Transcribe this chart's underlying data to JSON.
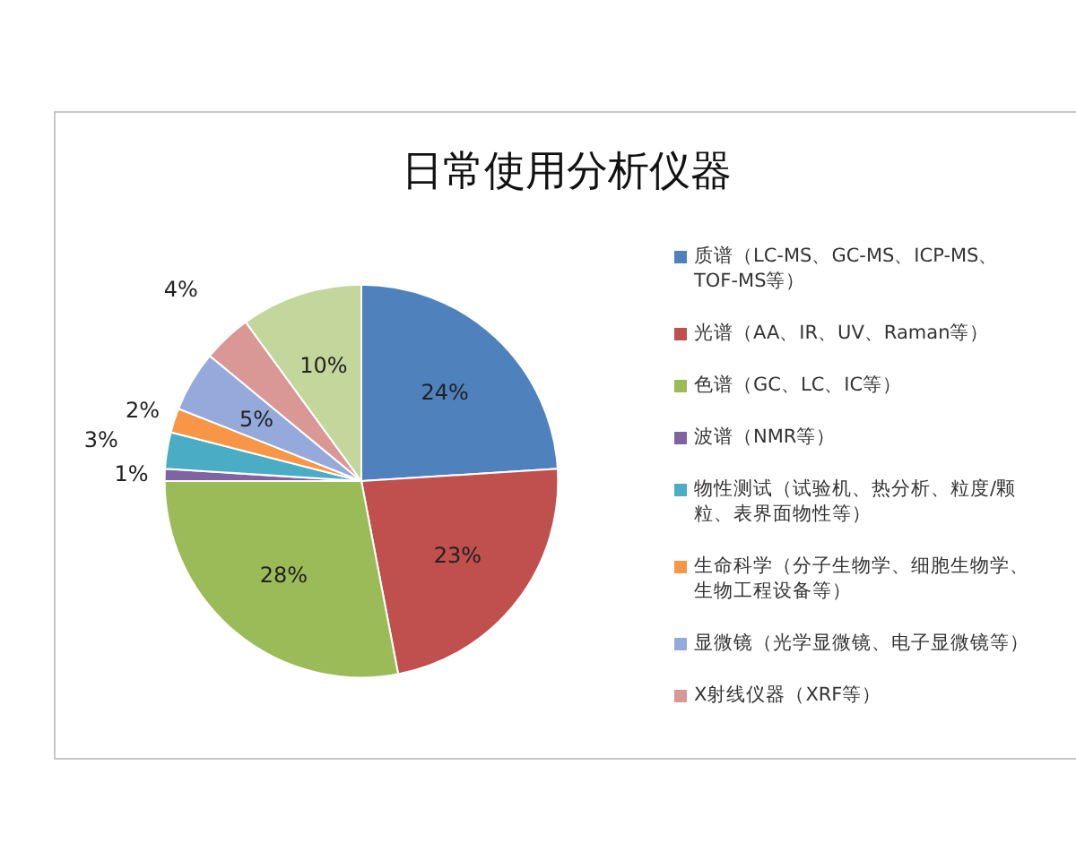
{
  "chart_data": {
    "type": "pie",
    "title": "日常使用分析仪器",
    "categories": [
      "质谱（LC-MS、GC-MS、ICP-MS、TOF-MS等）",
      "光谱（AA、IR、UV、Raman等）",
      "色谱（GC、LC、IC等）",
      "波谱（NMR等）",
      "物性测试（试验机、热分析、粒度/颗粒、表界面物性等）",
      "生命科学（分子生物学、细胞生物学、生物工程设备等）",
      "显微镜（光学显微镜、电子显微镜等）",
      "X射线仪器（XRF等）",
      null
    ],
    "values": [
      24,
      23,
      28,
      1,
      3,
      2,
      5,
      4,
      10
    ],
    "colors": [
      "#4f81bd",
      "#c0504d",
      "#9bbb59",
      "#8064a2",
      "#4bacc6",
      "#f79646",
      "#95a9db",
      "#d99795",
      "#c3d69b"
    ],
    "value_labels": [
      "24%",
      "23%",
      "28%",
      "1%",
      "3%",
      "2%",
      "5%",
      "4%",
      "10%"
    ],
    "legend": "right"
  }
}
